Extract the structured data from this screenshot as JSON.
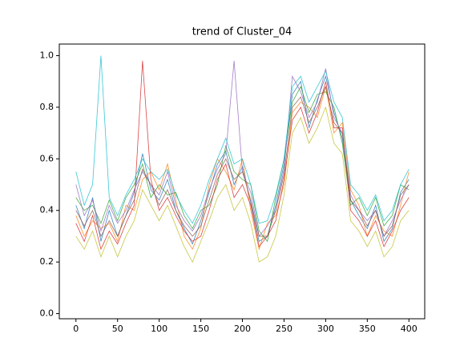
{
  "chart_data": {
    "type": "line",
    "title": "trend of Cluster_04",
    "x": [
      0,
      10,
      20,
      30,
      40,
      50,
      60,
      70,
      80,
      90,
      100,
      110,
      120,
      130,
      140,
      150,
      160,
      170,
      180,
      190,
      200,
      210,
      220,
      230,
      240,
      250,
      260,
      270,
      280,
      290,
      300,
      310,
      320,
      330,
      340,
      350,
      360,
      370,
      380,
      390,
      400
    ],
    "series": [
      {
        "color": "#1f77b4",
        "values": [
          0.42,
          0.33,
          0.45,
          0.28,
          0.4,
          0.3,
          0.38,
          0.47,
          0.62,
          0.48,
          0.44,
          0.52,
          0.4,
          0.33,
          0.27,
          0.36,
          0.47,
          0.58,
          0.63,
          0.5,
          0.57,
          0.43,
          0.28,
          0.3,
          0.42,
          0.58,
          0.85,
          0.9,
          0.72,
          0.83,
          0.92,
          0.78,
          0.68,
          0.44,
          0.38,
          0.33,
          0.42,
          0.28,
          0.33,
          0.47,
          0.52
        ]
      },
      {
        "color": "#ff7f0e",
        "values": [
          0.38,
          0.3,
          0.36,
          0.33,
          0.35,
          0.28,
          0.42,
          0.4,
          0.52,
          0.55,
          0.48,
          0.58,
          0.44,
          0.3,
          0.25,
          0.33,
          0.5,
          0.6,
          0.55,
          0.48,
          0.6,
          0.4,
          0.25,
          0.35,
          0.38,
          0.5,
          0.78,
          0.82,
          0.8,
          0.76,
          0.88,
          0.7,
          0.74,
          0.48,
          0.42,
          0.3,
          0.38,
          0.32,
          0.3,
          0.42,
          0.55
        ]
      },
      {
        "color": "#2ca02c",
        "values": [
          0.45,
          0.4,
          0.42,
          0.35,
          0.44,
          0.36,
          0.45,
          0.5,
          0.58,
          0.45,
          0.5,
          0.46,
          0.47,
          0.38,
          0.33,
          0.4,
          0.42,
          0.5,
          0.65,
          0.55,
          0.52,
          0.5,
          0.32,
          0.28,
          0.45,
          0.6,
          0.82,
          0.88,
          0.78,
          0.85,
          0.86,
          0.8,
          0.66,
          0.42,
          0.45,
          0.38,
          0.45,
          0.34,
          0.38,
          0.5,
          0.48
        ]
      },
      {
        "color": "#d62728",
        "values": [
          0.35,
          0.28,
          0.38,
          0.25,
          0.32,
          0.27,
          0.35,
          0.42,
          0.98,
          0.52,
          0.4,
          0.45,
          0.38,
          0.32,
          0.28,
          0.3,
          0.4,
          0.52,
          0.58,
          0.45,
          0.5,
          0.42,
          0.26,
          0.3,
          0.36,
          0.52,
          0.75,
          0.8,
          0.7,
          0.78,
          0.9,
          0.72,
          0.72,
          0.4,
          0.36,
          0.3,
          0.36,
          0.26,
          0.32,
          0.4,
          0.45
        ]
      },
      {
        "color": "#9467bd",
        "values": [
          0.5,
          0.38,
          0.44,
          0.32,
          0.42,
          0.35,
          0.4,
          0.48,
          0.55,
          0.5,
          0.46,
          0.55,
          0.42,
          0.36,
          0.32,
          0.38,
          0.48,
          0.56,
          0.62,
          0.98,
          0.55,
          0.47,
          0.3,
          0.34,
          0.4,
          0.56,
          0.92,
          0.86,
          0.76,
          0.82,
          0.95,
          0.76,
          0.7,
          0.46,
          0.4,
          0.36,
          0.4,
          0.3,
          0.36,
          0.44,
          0.5
        ]
      },
      {
        "color": "#8c564b",
        "values": [
          0.4,
          0.34,
          0.4,
          0.3,
          0.36,
          0.3,
          0.38,
          0.44,
          0.56,
          0.5,
          0.42,
          0.48,
          0.4,
          0.34,
          0.3,
          0.34,
          0.44,
          0.54,
          0.6,
          0.52,
          0.55,
          0.44,
          0.3,
          0.3,
          0.4,
          0.54,
          0.8,
          0.84,
          0.74,
          0.8,
          0.88,
          0.74,
          0.7,
          0.44,
          0.4,
          0.34,
          0.4,
          0.3,
          0.34,
          0.46,
          0.5
        ]
      },
      {
        "color": "#17becf",
        "values": [
          0.55,
          0.42,
          0.5,
          1.0,
          0.45,
          0.38,
          0.46,
          0.52,
          0.6,
          0.55,
          0.52,
          0.56,
          0.46,
          0.4,
          0.35,
          0.42,
          0.52,
          0.6,
          0.68,
          0.58,
          0.6,
          0.5,
          0.35,
          0.36,
          0.46,
          0.6,
          0.88,
          0.92,
          0.82,
          0.88,
          0.94,
          0.82,
          0.76,
          0.5,
          0.46,
          0.4,
          0.46,
          0.36,
          0.4,
          0.5,
          0.56
        ]
      },
      {
        "color": "#bcbd22",
        "values": [
          0.3,
          0.25,
          0.32,
          0.22,
          0.3,
          0.22,
          0.3,
          0.36,
          0.48,
          0.42,
          0.36,
          0.42,
          0.34,
          0.26,
          0.2,
          0.28,
          0.36,
          0.45,
          0.5,
          0.4,
          0.45,
          0.35,
          0.2,
          0.22,
          0.3,
          0.46,
          0.7,
          0.76,
          0.66,
          0.72,
          0.8,
          0.66,
          0.62,
          0.36,
          0.32,
          0.26,
          0.32,
          0.22,
          0.26,
          0.36,
          0.4
        ]
      }
    ],
    "xlim": [
      -20,
      419
    ],
    "ylim": [
      -0.02,
      1.045
    ],
    "xticks": [
      0,
      50,
      100,
      150,
      200,
      250,
      300,
      350,
      400
    ],
    "yticks": [
      {
        "value": 0,
        "label": "0.0"
      },
      0.2,
      0.4,
      0.6,
      0.8,
      {
        "value": 1,
        "label": "1.0"
      }
    ]
  }
}
